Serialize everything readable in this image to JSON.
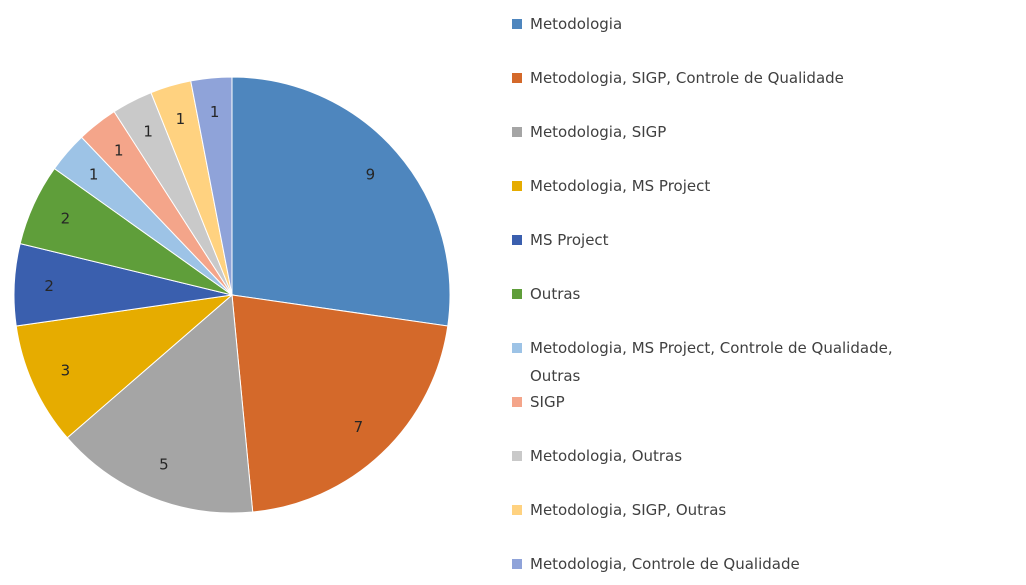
{
  "chart_data": {
    "type": "pie",
    "categories": [
      "Metodologia",
      "Metodologia, SIGP, Controle de Qualidade",
      "Metodologia, SIGP",
      "Metodologia, MS Project",
      "MS Project",
      "Outras",
      "Metodologia, MS Project, Controle de Qualidade, Outras",
      "SIGP",
      "Metodologia, Outras",
      "Metodologia, SIGP, Outras",
      "Metodologia, Controle de Qualidade"
    ],
    "values": [
      9,
      7,
      5,
      3,
      2,
      2,
      1,
      1,
      1,
      1,
      1
    ],
    "colors": [
      "#4e86be",
      "#d4692a",
      "#a5a5a5",
      "#e6ac00",
      "#3a5fae",
      "#5f9e3a",
      "#9dc3e6",
      "#f4a58a",
      "#c9c9c9",
      "#ffd280",
      "#8fa3d9"
    ],
    "legend": "right"
  }
}
